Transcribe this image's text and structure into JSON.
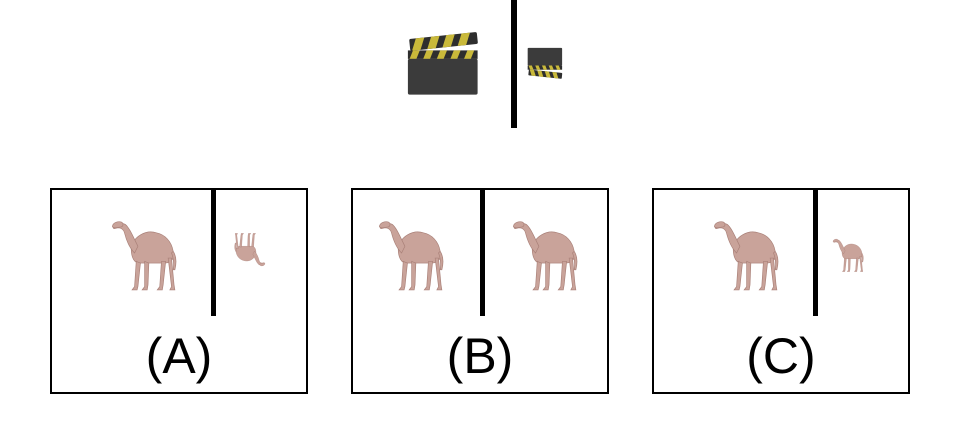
{
  "colors": {
    "camel_fill": "#c9a39a",
    "camel_shade": "#b38b82",
    "clapper_board": "#3b3b3b",
    "clapper_stripe_yellow": "#c9b93a",
    "clapper_stripe_dark": "#2e2e2e"
  },
  "example": {
    "left_icon": "clapperboard-icon",
    "right_icon": "clapperboard-small-transformed-icon"
  },
  "options": [
    {
      "label": "(A)",
      "left_icon": "camel-icon",
      "right_icon": "camel-small-upside-down-icon"
    },
    {
      "label": "(B)",
      "left_icon": "camel-icon",
      "right_icon": "camel-icon"
    },
    {
      "label": "(C)",
      "left_icon": "camel-icon",
      "right_icon": "camel-small-icon"
    }
  ]
}
